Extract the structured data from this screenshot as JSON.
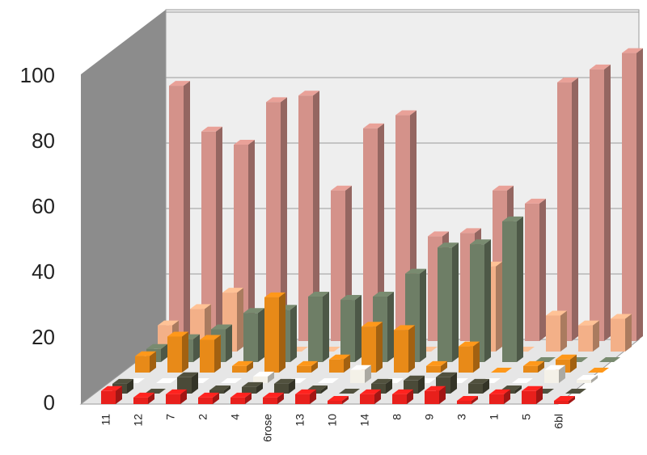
{
  "chart_data": {
    "type": "bar3d",
    "categories": [
      "11",
      "12",
      "7",
      "2",
      "4",
      "6rose",
      "13",
      "10",
      "14",
      "8",
      "9",
      "3",
      "1",
      "5",
      "6bl"
    ],
    "series": [
      {
        "color": "#e8201c",
        "values": [
          4,
          2,
          3,
          2,
          2,
          2,
          3,
          1,
          3,
          3,
          4,
          1,
          3,
          4,
          1
        ]
      },
      {
        "color": "#4a4a38",
        "values": [
          3,
          0,
          5,
          1,
          2,
          3,
          1,
          0,
          3,
          4,
          5,
          3,
          1,
          0,
          0
        ]
      },
      {
        "color": "#f4f1e8",
        "values": [
          0,
          0,
          0,
          0,
          2,
          0,
          0,
          4,
          0,
          0,
          0,
          0,
          0,
          4,
          1
        ]
      },
      {
        "color": "#e88a18",
        "values": [
          5,
          11,
          10,
          2,
          23,
          2,
          4,
          14,
          13,
          2,
          8,
          0,
          2,
          4,
          0
        ]
      },
      {
        "color": "#6e7e66",
        "values": [
          4,
          7,
          10,
          15,
          16,
          20,
          19,
          20,
          27,
          35,
          36,
          43,
          0,
          0,
          0
        ]
      },
      {
        "color": "#f3b088",
        "values": [
          8,
          13,
          18,
          0,
          0,
          0,
          0,
          0,
          0,
          0,
          26,
          0,
          11,
          8,
          10
        ]
      },
      {
        "color": "#d4928a",
        "values": [
          78,
          64,
          60,
          73,
          75,
          46,
          65,
          69,
          32,
          33,
          46,
          42,
          79,
          83,
          88
        ]
      }
    ],
    "ylim": [
      0,
      100
    ],
    "yticks": [
      0,
      20,
      40,
      60,
      80,
      100
    ],
    "grid": true
  }
}
